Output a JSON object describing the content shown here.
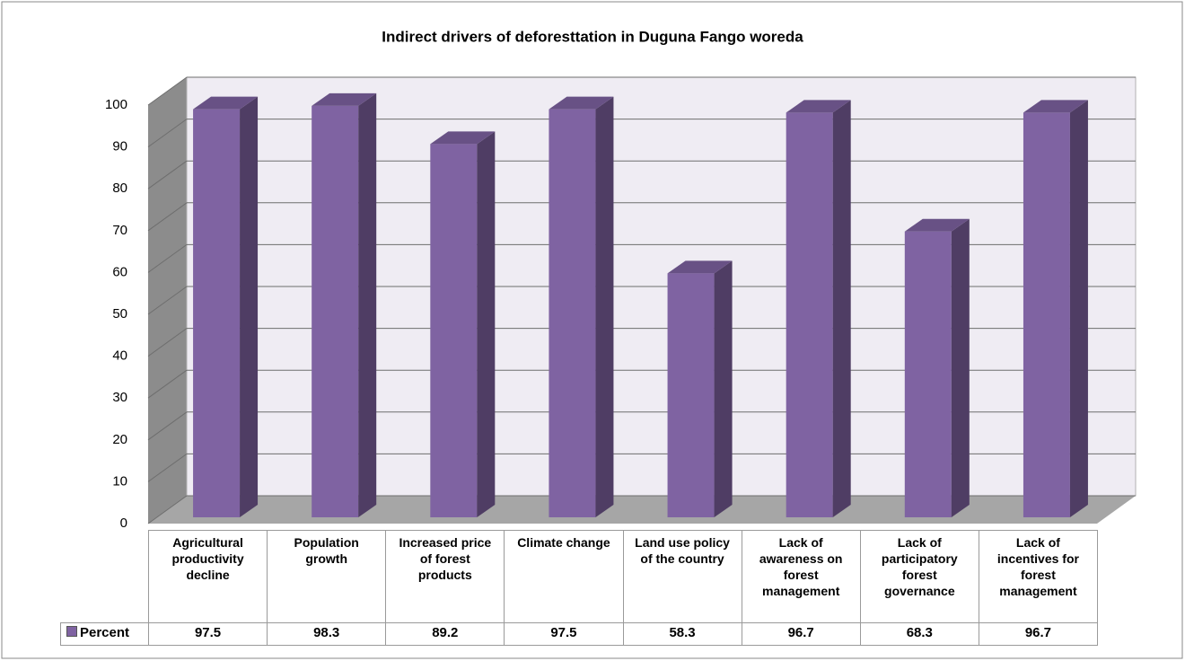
{
  "chart_data": {
    "type": "bar3d",
    "title": "Indirect drivers of deforesttation in Duguna Fango woreda",
    "categories": [
      "Agricultural productivity decline",
      "Population growth",
      "Increased price of forest products",
      "Climate change",
      "Land use policy of the country",
      "Lack of awareness on forest management",
      "Lack of participatory forest governance",
      "Lack of incentives for forest management"
    ],
    "series": [
      {
        "name": "Percent",
        "color": "#7f63a2",
        "values": [
          97.5,
          98.3,
          89.2,
          97.5,
          58.3,
          96.7,
          68.3,
          96.7
        ]
      }
    ],
    "ylim": [
      0,
      100
    ],
    "yticks": [
      0,
      10,
      20,
      30,
      40,
      50,
      60,
      70,
      80,
      90,
      100
    ],
    "grid": true
  }
}
